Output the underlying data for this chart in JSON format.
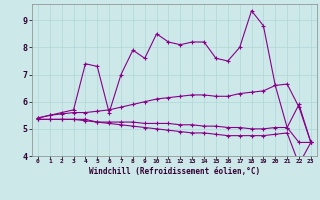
{
  "xlabel": "Windchill (Refroidissement éolien,°C)",
  "bg_color": "#cce8e8",
  "line_color": "#880088",
  "x": [
    0,
    1,
    2,
    3,
    4,
    5,
    6,
    7,
    8,
    9,
    10,
    11,
    12,
    13,
    14,
    15,
    16,
    17,
    18,
    19,
    20,
    21,
    22,
    23
  ],
  "series1": [
    5.4,
    5.5,
    5.6,
    5.7,
    7.4,
    7.3,
    5.6,
    7.0,
    7.9,
    7.6,
    8.5,
    8.2,
    8.1,
    8.2,
    8.2,
    7.6,
    7.5,
    8.0,
    9.35,
    8.8,
    6.6,
    5.05,
    5.9,
    4.5
  ],
  "series2": [
    5.4,
    5.5,
    5.55,
    5.6,
    5.6,
    5.65,
    5.7,
    5.8,
    5.9,
    6.0,
    6.1,
    6.15,
    6.2,
    6.25,
    6.25,
    6.2,
    6.2,
    6.3,
    6.35,
    6.4,
    6.6,
    6.65,
    5.8,
    4.5
  ],
  "series3": [
    5.35,
    5.35,
    5.35,
    5.35,
    5.35,
    5.25,
    5.2,
    5.15,
    5.1,
    5.05,
    5.0,
    4.95,
    4.9,
    4.85,
    4.85,
    4.8,
    4.75,
    4.75,
    4.75,
    4.75,
    4.8,
    4.85,
    3.7,
    4.5
  ],
  "series4": [
    5.35,
    5.35,
    5.35,
    5.35,
    5.3,
    5.25,
    5.25,
    5.25,
    5.25,
    5.2,
    5.2,
    5.2,
    5.15,
    5.15,
    5.1,
    5.1,
    5.05,
    5.05,
    5.0,
    5.0,
    5.05,
    5.05,
    4.5,
    4.5
  ],
  "ylim": [
    4,
    9.6
  ],
  "yticks": [
    4,
    5,
    6,
    7,
    8,
    9
  ],
  "grid_color": "#b0d8d8",
  "marker": "+"
}
